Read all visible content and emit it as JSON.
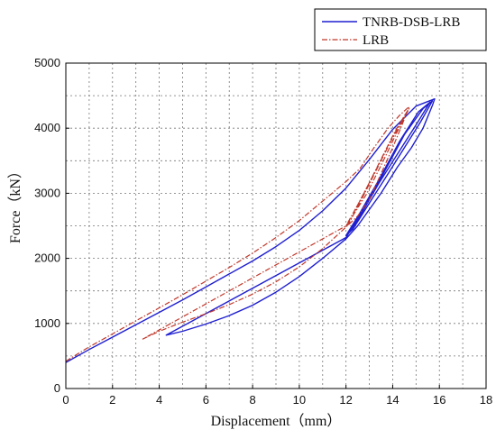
{
  "chart_data": {
    "type": "line",
    "xlabel": "Displacement（mm）",
    "ylabel": "Force（kN）",
    "xlim": [
      0,
      18
    ],
    "ylim": [
      0,
      5000
    ],
    "x_ticks": [
      "0",
      "2",
      "4",
      "6",
      "8",
      "10",
      "12",
      "14",
      "16",
      "18"
    ],
    "y_ticks": [
      "0",
      "1000",
      "2000",
      "3000",
      "4000",
      "5000"
    ],
    "grid": true,
    "grid_style": "dashed",
    "legend_position": "top-right",
    "series": [
      {
        "name": "TNRB-DSB-LRB",
        "color": "#1f1fd0",
        "style": "solid",
        "points": [
          [
            0,
            400
          ],
          [
            1,
            600
          ],
          [
            2,
            790
          ],
          [
            3,
            980
          ],
          [
            4,
            1170
          ],
          [
            5,
            1360
          ],
          [
            6,
            1560
          ],
          [
            7,
            1760
          ],
          [
            8,
            1960
          ],
          [
            9,
            2180
          ],
          [
            10,
            2430
          ],
          [
            11,
            2730
          ],
          [
            12,
            3080
          ],
          [
            13,
            3520
          ],
          [
            14,
            3980
          ],
          [
            15,
            4340
          ],
          [
            15.8,
            4450
          ],
          [
            15.7,
            4350
          ],
          [
            15.3,
            4000
          ],
          [
            14.8,
            3700
          ],
          [
            14.2,
            3400
          ],
          [
            13.5,
            3000
          ],
          [
            13,
            2750
          ],
          [
            12.5,
            2500
          ],
          [
            12,
            2300
          ],
          [
            11,
            2000
          ],
          [
            10,
            1720
          ],
          [
            9,
            1480
          ],
          [
            8,
            1280
          ],
          [
            7,
            1120
          ],
          [
            6,
            990
          ],
          [
            5,
            880
          ],
          [
            4.3,
            820
          ],
          [
            12,
            2320
          ],
          [
            12.8,
            2800
          ],
          [
            13.6,
            3300
          ],
          [
            14.5,
            3900
          ],
          [
            15.3,
            4300
          ],
          [
            15.7,
            4420
          ],
          [
            15.2,
            4100
          ],
          [
            14.5,
            3700
          ],
          [
            13.8,
            3300
          ],
          [
            13,
            2850
          ],
          [
            12.3,
            2450
          ],
          [
            12,
            2350
          ],
          [
            12.6,
            2700
          ],
          [
            13.4,
            3200
          ],
          [
            14.3,
            3800
          ],
          [
            15.1,
            4250
          ],
          [
            15.6,
            4400
          ],
          [
            15,
            4050
          ],
          [
            14.2,
            3600
          ],
          [
            13.4,
            3150
          ],
          [
            12.6,
            2650
          ],
          [
            12.1,
            2380
          ]
        ]
      },
      {
        "name": "LRB",
        "color": "#c0392b",
        "style": "dashdot",
        "points": [
          [
            0,
            420
          ],
          [
            1,
            640
          ],
          [
            2,
            840
          ],
          [
            3,
            1040
          ],
          [
            4,
            1240
          ],
          [
            5,
            1440
          ],
          [
            6,
            1650
          ],
          [
            7,
            1860
          ],
          [
            8,
            2080
          ],
          [
            9,
            2320
          ],
          [
            10,
            2580
          ],
          [
            11,
            2880
          ],
          [
            12,
            3180
          ],
          [
            12.6,
            3380
          ],
          [
            13.2,
            3700
          ],
          [
            13.8,
            4000
          ],
          [
            14.3,
            4200
          ],
          [
            14.7,
            4330
          ],
          [
            14.4,
            4050
          ],
          [
            14,
            3700
          ],
          [
            13.5,
            3300
          ],
          [
            13,
            2900
          ],
          [
            12.5,
            2650
          ],
          [
            12,
            2480
          ],
          [
            11,
            2150
          ],
          [
            10,
            1870
          ],
          [
            9,
            1640
          ],
          [
            8,
            1450
          ],
          [
            7,
            1290
          ],
          [
            6,
            1150
          ],
          [
            5,
            1020
          ],
          [
            4,
            880
          ],
          [
            3.3,
            760
          ],
          [
            12.1,
            2520
          ],
          [
            12.8,
            3000
          ],
          [
            13.5,
            3500
          ],
          [
            14.2,
            4000
          ],
          [
            14.7,
            4300
          ],
          [
            14.2,
            3950
          ],
          [
            13.6,
            3500
          ],
          [
            12.9,
            3000
          ],
          [
            12.2,
            2600
          ],
          [
            12,
            2500
          ],
          [
            12.7,
            2950
          ],
          [
            13.4,
            3450
          ],
          [
            14.1,
            3950
          ],
          [
            14.6,
            4250
          ],
          [
            14,
            3850
          ],
          [
            13.2,
            3300
          ],
          [
            12.4,
            2750
          ]
        ]
      }
    ]
  }
}
